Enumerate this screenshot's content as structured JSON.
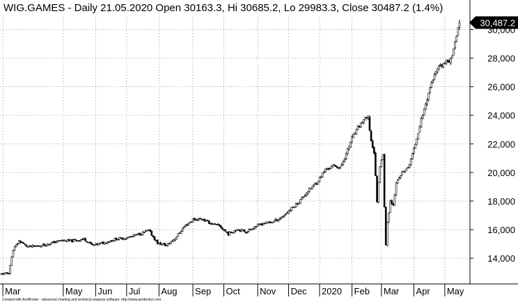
{
  "chart_data": {
    "type": "candlestick",
    "title": "WIG.GAMES - Daily 21.05.2020 Open 30163.3, Hi 30685.2, Lo 29983.3, Close 30487.2 (1.4%)",
    "footer": "Created with AmiBroker - advanced charting and technical analysis software. http://www.amibroker.com",
    "ylim": [
      12400,
      30900
    ],
    "yticks": [
      {
        "value": 14000,
        "label": "14,000"
      },
      {
        "value": 16000,
        "label": "16,000"
      },
      {
        "value": 18000,
        "label": "18,000"
      },
      {
        "value": 20000,
        "label": "20,000"
      },
      {
        "value": 22000,
        "label": "22,000"
      },
      {
        "value": 24000,
        "label": "24,000"
      },
      {
        "value": 26000,
        "label": "26,000"
      },
      {
        "value": 28000,
        "label": "28,000"
      },
      {
        "value": 30000,
        "label": "30,000"
      }
    ],
    "last_value": {
      "value": 30487.2,
      "label": "30,487.2"
    },
    "xticks": [
      {
        "label": "Mar",
        "index": 1
      },
      {
        "label": "May",
        "index": 42
      },
      {
        "label": "Jun",
        "index": 64
      },
      {
        "label": "Jul",
        "index": 85
      },
      {
        "label": "Aug",
        "index": 107
      },
      {
        "label": "Sep",
        "index": 130
      },
      {
        "label": "Oct",
        "index": 151
      },
      {
        "label": "Nov",
        "index": 174
      },
      {
        "label": "Dec",
        "index": 195
      },
      {
        "label": "2020",
        "index": 216
      },
      {
        "label": "Feb",
        "index": 238
      },
      {
        "label": "Mar",
        "index": 258
      },
      {
        "label": "Apr",
        "index": 280
      },
      {
        "label": "May",
        "index": 301
      }
    ],
    "anchors": [
      [
        0,
        12900
      ],
      [
        5,
        12950
      ],
      [
        8,
        14600
      ],
      [
        12,
        15200
      ],
      [
        18,
        14800
      ],
      [
        24,
        14850
      ],
      [
        32,
        15000
      ],
      [
        40,
        15250
      ],
      [
        48,
        15200
      ],
      [
        56,
        15350
      ],
      [
        62,
        14900
      ],
      [
        70,
        15100
      ],
      [
        78,
        15350
      ],
      [
        86,
        15450
      ],
      [
        94,
        15700
      ],
      [
        100,
        15950
      ],
      [
        106,
        15050
      ],
      [
        112,
        14900
      ],
      [
        118,
        15400
      ],
      [
        124,
        16200
      ],
      [
        130,
        16700
      ],
      [
        136,
        16750
      ],
      [
        142,
        16450
      ],
      [
        148,
        16250
      ],
      [
        154,
        15700
      ],
      [
        160,
        16050
      ],
      [
        166,
        15850
      ],
      [
        172,
        16200
      ],
      [
        178,
        16450
      ],
      [
        184,
        16550
      ],
      [
        190,
        16850
      ],
      [
        196,
        17400
      ],
      [
        202,
        17950
      ],
      [
        208,
        18700
      ],
      [
        214,
        19300
      ],
      [
        220,
        20200
      ],
      [
        226,
        20500
      ],
      [
        230,
        20300
      ],
      [
        234,
        21300
      ],
      [
        238,
        22400
      ],
      [
        242,
        23100
      ],
      [
        246,
        23700
      ],
      [
        249,
        23800
      ],
      [
        251,
        22200
      ],
      [
        253,
        21400
      ],
      [
        255,
        18000
      ],
      [
        257,
        20500
      ],
      [
        259,
        21300
      ],
      [
        260,
        17500
      ],
      [
        261,
        15000
      ],
      [
        262,
        16500
      ],
      [
        264,
        18000
      ],
      [
        266,
        17800
      ],
      [
        268,
        19200
      ],
      [
        272,
        20000
      ],
      [
        276,
        20300
      ],
      [
        280,
        21600
      ],
      [
        284,
        23300
      ],
      [
        288,
        24800
      ],
      [
        292,
        26300
      ],
      [
        296,
        27200
      ],
      [
        300,
        27600
      ],
      [
        304,
        27800
      ],
      [
        306,
        28300
      ],
      [
        308,
        29000
      ],
      [
        310,
        30200
      ],
      [
        311,
        30487
      ]
    ]
  }
}
